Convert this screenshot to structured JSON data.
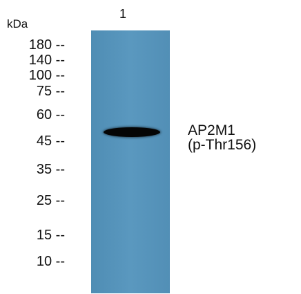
{
  "unit_label": "kDa",
  "lane_label": "1",
  "markers": [
    {
      "label": "180 --",
      "kda": 180
    },
    {
      "label": "140 --",
      "kda": 140
    },
    {
      "label": "100 --",
      "kda": 100
    },
    {
      "label": "75 --",
      "kda": 75
    },
    {
      "label": "60 --",
      "kda": 60
    },
    {
      "label": "45 --",
      "kda": 45
    },
    {
      "label": "35 --",
      "kda": 35
    },
    {
      "label": "25 --",
      "kda": 25
    },
    {
      "label": "15 --",
      "kda": 15
    },
    {
      "label": "10 --",
      "kda": 10
    }
  ],
  "band": {
    "kda": 48
  },
  "protein_label": {
    "line1": "AP2M1",
    "line2": "(p-Thr156)"
  },
  "colors": {
    "membrane": "#5592ba",
    "band": "#050505",
    "text": "#111111"
  }
}
